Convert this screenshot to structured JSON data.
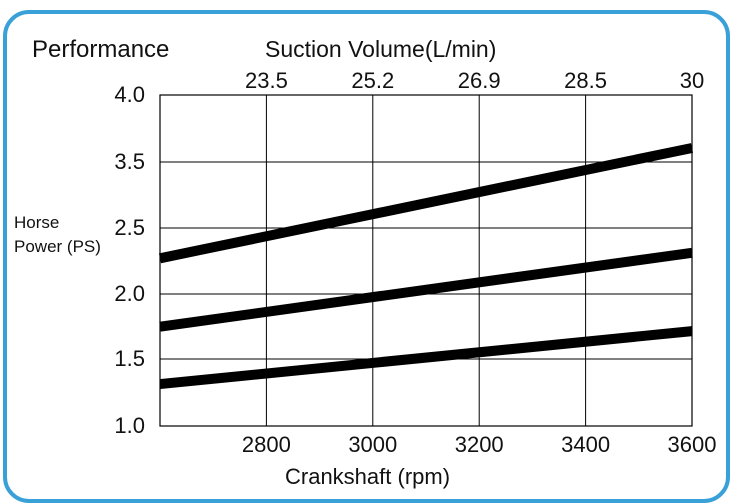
{
  "panel_title": "Performance",
  "chart_data": {
    "type": "line",
    "title": "Performance",
    "x": [
      2600,
      2800,
      3000,
      3200,
      3400,
      3600
    ],
    "xticks": [
      2800,
      3000,
      3200,
      3400,
      3600
    ],
    "xlabel": "Crankshaft (rpm)",
    "xlim": [
      2600,
      3600
    ],
    "x2label": "Suction Volume(L/min)",
    "x2ticks": [
      "23.5",
      "25.2",
      "26.9",
      "28.5",
      "30"
    ],
    "ylabel": "Horse Power (PS)",
    "ylabel_lines": [
      "Horse",
      "Power (PS)"
    ],
    "yticks": [
      "4.0",
      "3.5",
      "2.5",
      "2.0",
      "1.5",
      "1.0"
    ],
    "ylim_tick_index": [
      0,
      5
    ],
    "grid": true,
    "series": [
      {
        "values_at_x_ends": [
          2.52,
          3.52
        ],
        "color": "#000000"
      },
      {
        "values_at_x_ends": [
          1.9,
          2.57
        ],
        "color": "#000000"
      },
      {
        "values_at_x_ends": [
          1.38,
          1.86
        ],
        "color": "#000000"
      }
    ]
  },
  "colors": {
    "frame_border": "#3aa0d8",
    "grid": "#000000",
    "line": "#000000",
    "text": "#111111"
  }
}
